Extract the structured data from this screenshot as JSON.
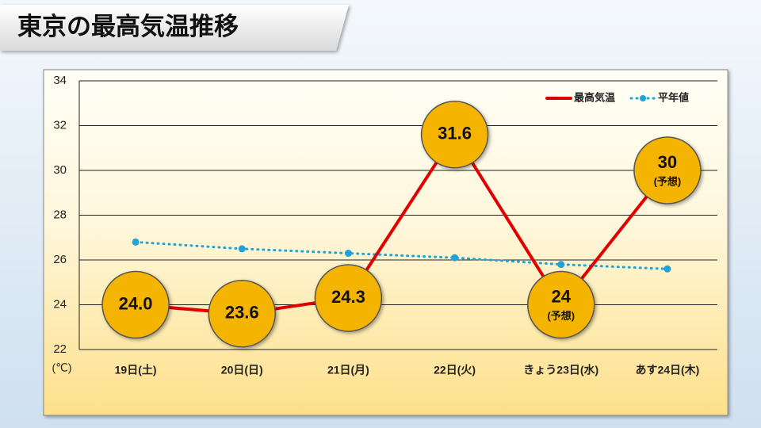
{
  "chart_data": {
    "type": "line",
    "title": "東京の最高気温推移",
    "y_unit_label": "(℃)",
    "categories": [
      "19日(土)",
      "20日(日)",
      "21日(月)",
      "22日(火)",
      "きょう23日(水)",
      "あす24日(木)"
    ],
    "series": [
      {
        "name": "最高気温",
        "color": "#e00000",
        "style": "solid",
        "bubble_color": "#f5b400",
        "values": [
          24.0,
          23.6,
          24.3,
          31.6,
          24,
          30
        ],
        "value_labels": [
          "24.0",
          "23.6",
          "24.3",
          "31.6",
          "24",
          "30"
        ],
        "value_notes": [
          null,
          null,
          null,
          null,
          "(予想)",
          "(予想)"
        ]
      },
      {
        "name": "平年値",
        "color": "#1fa3d8",
        "style": "dotted",
        "values": [
          26.8,
          26.5,
          26.3,
          26.1,
          25.8,
          25.6
        ]
      }
    ],
    "ylim": [
      22,
      34
    ],
    "yticks": [
      22,
      24,
      26,
      28,
      30,
      32,
      34
    ],
    "grid": true,
    "legend": "top-right"
  }
}
